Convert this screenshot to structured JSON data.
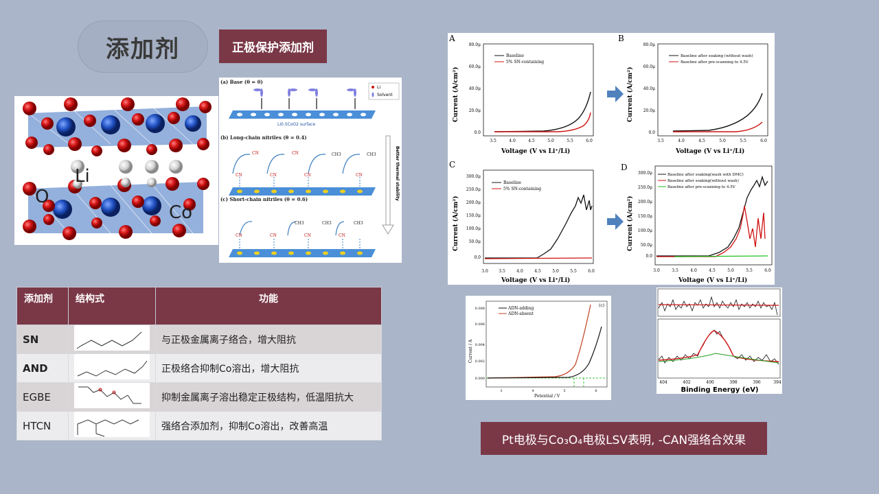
{
  "title": "添加剂",
  "subtitle": "正极保护添加剂",
  "crystal": {
    "li": "Li",
    "o": "O",
    "co": "Co"
  },
  "mechanism": {
    "a_label": "(a) Base (θ = 0)",
    "b_label": "(b) Long-chain nitriles (θ = 0.4)",
    "c_label": "(c) Short-chain nitriles (θ = 0.6)",
    "legend_li": "Li",
    "legend_solvent": "Solvent",
    "surface_label": "Li0.5CoO2 surface",
    "arrow_label": "Better thermal stability",
    "cn": "CN",
    "ch3": "CH3"
  },
  "table": {
    "headers": [
      "添加剂",
      "结构式",
      "功能"
    ],
    "rows": [
      {
        "name": "SN",
        "function": "与正极金属离子络合，增大阻抗"
      },
      {
        "name": "AND",
        "function": "正极络合抑制Co溶出，增大阻抗"
      },
      {
        "name": "EGBE",
        "function": "抑制金属离子溶出稳定正极结构，低温阻抗大"
      },
      {
        "name": "HTCN",
        "function": "强络合添加剂，抑制Co溶出，改善高温"
      }
    ]
  },
  "panels": {
    "A": {
      "letter": "A",
      "legend": [
        "Baseline",
        "5% SN-containing"
      ],
      "yticks": [
        "80.0μ",
        "60.0μ",
        "40.0μ",
        "20.0μ",
        "0.0"
      ],
      "xticks": [
        "3.5",
        "4.0",
        "4.5",
        "5.0",
        "5.5",
        "6.0"
      ]
    },
    "B": {
      "letter": "B",
      "legend": [
        "Baseline after soaking (without wash)",
        "Baseline after pre-scanning to 4.5V"
      ],
      "yticks": [
        "80.0μ",
        "60.0μ",
        "40.0μ",
        "20.0μ",
        "0.0"
      ],
      "xticks": [
        "3.5",
        "4.0",
        "4.5",
        "5.0",
        "5.5",
        "6.0"
      ]
    },
    "C": {
      "letter": "C",
      "legend": [
        "Baseline",
        "5% SN-containing"
      ],
      "yticks": [
        "300.0μ",
        "250.0μ",
        "200.0μ",
        "150.0μ",
        "100.0μ",
        "50.0μ",
        "0.0"
      ],
      "xticks": [
        "3.0",
        "3.5",
        "4.0",
        "4.5",
        "5.0",
        "5.5",
        "6.0"
      ]
    },
    "D": {
      "letter": "D",
      "legend": [
        "Baseline after soaking(wash with DMC)",
        "Baseline after soaking(without wash)",
        "Baseline after pre-scanning to 4.5V"
      ],
      "yticks": [
        "300.0μ",
        "250.0μ",
        "200.0μ",
        "150.0μ",
        "100.0μ",
        "50.0μ",
        "0.0"
      ],
      "xticks": [
        "3.0",
        "3.5",
        "4.0",
        "4.5",
        "5.0",
        "5.5",
        "6.0"
      ]
    },
    "ylabel": "Current (A/cm²)",
    "xlabel": "Voltage (V vs Li⁺/Li)"
  },
  "adn_chart": {
    "tag": "(c)",
    "legend": [
      "ADN-adding",
      "ADN-absent"
    ],
    "ylabel": "Current / A",
    "xlabel": "Potential / V",
    "yticks": [
      "0.008",
      "0.006",
      "0.004",
      "0.002",
      "0.000"
    ],
    "xticks": [
      "3",
      "4",
      "5",
      "6"
    ]
  },
  "xps": {
    "xlabel": "Binding Energy (eV)",
    "xticks": [
      "404",
      "402",
      "400",
      "398",
      "396",
      "394"
    ]
  },
  "conclusion": "Pt电极与Co₃O₄电极LSV表明, -CAN强络合效果",
  "colors": {
    "accent": "#7a3847",
    "background": "#aab5c9",
    "arrow": "#4f81bd"
  }
}
